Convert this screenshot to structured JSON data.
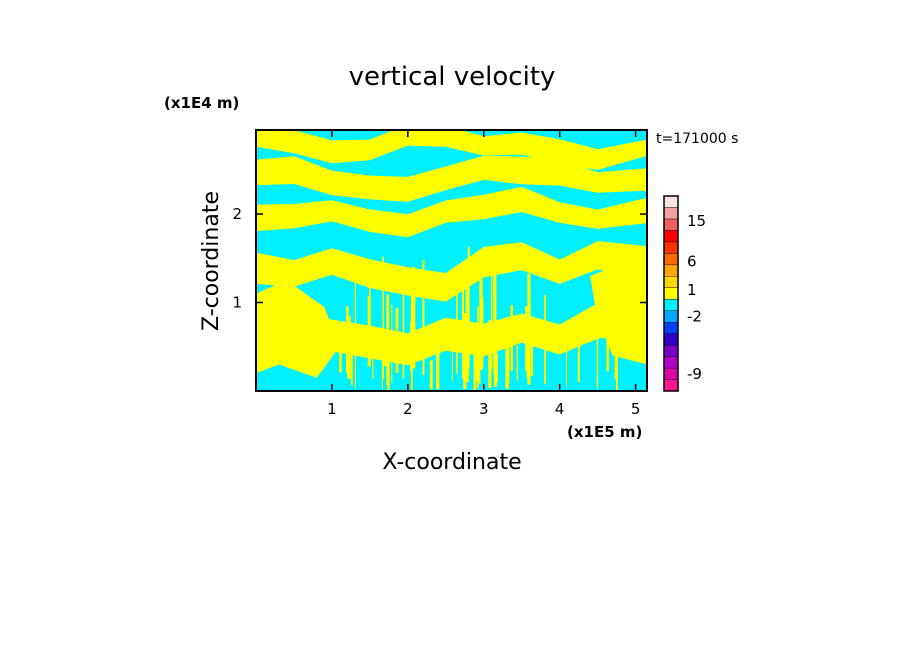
{
  "chart_data": {
    "type": "heatmap",
    "title": "vertical velocity",
    "xlabel": "X-coordinate",
    "ylabel": "Z-coordinate",
    "x_unit": "(x1E5 m)",
    "y_unit": "(x1E4 m)",
    "time_label": "t=171000 s",
    "xlim": [
      0,
      5.15
    ],
    "ylim": [
      0,
      2.95
    ],
    "x_ticks": [
      1,
      2,
      3,
      4,
      5
    ],
    "x_tick_labels": [
      "1",
      "2",
      "3",
      "4",
      "5"
    ],
    "y_ticks": [
      1,
      2
    ],
    "y_tick_labels": [
      "1",
      "2"
    ],
    "colorbar": {
      "levels": [
        {
          "color": "#ff1493"
        },
        {
          "color": "#dd00aa"
        },
        {
          "color": "#b000c8"
        },
        {
          "color": "#7a00cc"
        },
        {
          "color": "#3300cc"
        },
        {
          "color": "#0040ff"
        },
        {
          "color": "#00a8ff"
        },
        {
          "color": "#00f0ff"
        },
        {
          "color": "#ffff00"
        },
        {
          "color": "#ffd700"
        },
        {
          "color": "#ffa500"
        },
        {
          "color": "#ff6a00"
        },
        {
          "color": "#ff3300"
        },
        {
          "color": "#ff0000"
        },
        {
          "color": "#f06060"
        },
        {
          "color": "#f4a0a0"
        },
        {
          "color": "#fce4e0"
        }
      ],
      "labels": [
        {
          "text": "-9",
          "level": 1.5
        },
        {
          "text": "-2",
          "level": 6.5
        },
        {
          "text": "1",
          "level": 8.8
        },
        {
          "text": "6",
          "level": 11.3
        },
        {
          "text": "15",
          "level": 14.8
        }
      ]
    },
    "field_colors": {
      "positive": "#ffff00",
      "negative": "#00f0ff"
    },
    "bands": [
      {
        "x": [
          0,
          0.5,
          1.0,
          1.5,
          2.0,
          2.5,
          3.0,
          3.5,
          4.0,
          4.5,
          5.15
        ],
        "z": [
          2.85,
          2.8,
          2.72,
          2.75,
          2.88,
          2.85,
          2.78,
          2.82,
          2.7,
          2.6,
          2.75
        ],
        "width": 0.12
      },
      {
        "x": [
          0,
          0.5,
          1.0,
          1.5,
          2.0,
          2.5,
          3.0,
          3.5,
          4.0,
          4.5,
          5.15
        ],
        "z": [
          2.45,
          2.5,
          2.38,
          2.3,
          2.25,
          2.4,
          2.55,
          2.5,
          2.45,
          2.35,
          2.4
        ],
        "width": 0.14
      },
      {
        "x": [
          0,
          0.5,
          1.0,
          1.5,
          2.0,
          2.5,
          3.0,
          3.5,
          4.0,
          4.5,
          5.15
        ],
        "z": [
          1.95,
          2.0,
          2.05,
          1.9,
          1.85,
          2.05,
          2.1,
          2.15,
          2.0,
          1.95,
          2.05
        ],
        "width": 0.13
      },
      {
        "x": [
          0,
          0.5,
          1.0,
          1.5,
          2.0,
          2.5,
          3.0,
          3.5,
          4.0,
          4.5,
          5.15
        ],
        "z": [
          1.4,
          1.35,
          1.45,
          1.3,
          1.25,
          1.2,
          1.45,
          1.5,
          1.35,
          1.55,
          1.45
        ],
        "width": 0.16
      },
      {
        "x": [
          0,
          0.5,
          1.0,
          1.5,
          2.0,
          2.5,
          3.0,
          3.5,
          4.0,
          4.5,
          5.15
        ],
        "z": [
          0.7,
          0.75,
          0.6,
          0.55,
          0.5,
          0.65,
          0.55,
          0.7,
          0.6,
          0.8,
          0.85
        ],
        "width": 0.18
      }
    ],
    "streaks": {
      "x_range": [
        1.0,
        4.9
      ],
      "count": 60,
      "z_max": 1.4
    }
  }
}
